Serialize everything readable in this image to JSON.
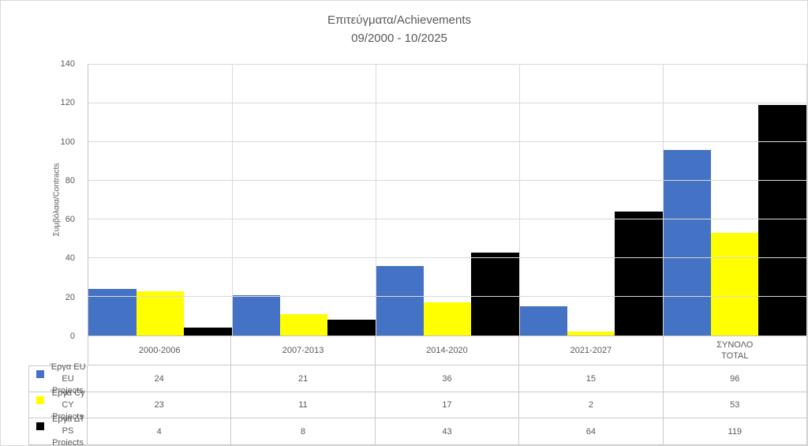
{
  "chart_data": {
    "type": "bar",
    "title": "Επιτεύγματα/Achievements",
    "subtitle": "09/2000 - 10/2025",
    "ylabel": "Συμβόλαια/Contracts",
    "xlabel": "",
    "ylim": [
      0,
      140
    ],
    "yticks": [
      0,
      20,
      40,
      60,
      80,
      100,
      120,
      140
    ],
    "grid": true,
    "legend_position": "data-table-left",
    "categories": [
      "2000-2006",
      "2007-2013",
      "2014-2020",
      "2021-2027",
      "ΣΥΝΟΛΟ TOTAL"
    ],
    "category_header_lines": [
      [
        "2000-2006"
      ],
      [
        "2007-2013"
      ],
      [
        "2014-2020"
      ],
      [
        "2021-2027"
      ],
      [
        "ΣΥΝΟΛΟ",
        "TOTAL"
      ]
    ],
    "series": [
      {
        "name": "Έργα EU / EU Projects",
        "legend_lines": [
          "Έργα EU",
          "EU Projects"
        ],
        "color": "#4472C4",
        "values": [
          24,
          21,
          36,
          15,
          96
        ]
      },
      {
        "name": "Έργα Cy / CY Projects",
        "legend_lines": [
          "Έργα Cy",
          "CY Projects"
        ],
        "color": "#FFFF00",
        "values": [
          23,
          11,
          17,
          2,
          53
        ]
      },
      {
        "name": "Έργα ΔΤ / PS Projects",
        "legend_lines": [
          "Έργα ΔΤ",
          "PS Projects"
        ],
        "color": "#000000",
        "values": [
          4,
          8,
          43,
          64,
          119
        ]
      }
    ]
  },
  "colors": {
    "text": "#595959",
    "gridline": "#D9D9D9",
    "axis_line": "#BFBFBF",
    "table_border": "#C9C9C9",
    "series_blue": "#4472C4",
    "series_yellow": "#FFFF00",
    "series_black": "#000000"
  }
}
